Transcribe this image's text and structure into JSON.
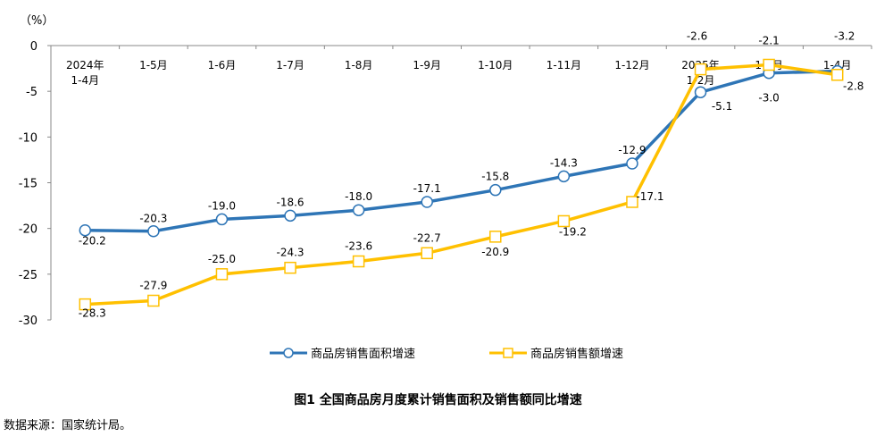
{
  "chart_data": {
    "type": "line",
    "unit_label": "（%）",
    "categories": [
      "2024年\n1-4月",
      "1-5月",
      "1-6月",
      "1-7月",
      "1-8月",
      "1-9月",
      "1-10月",
      "1-11月",
      "1-12月",
      "2025年\n1-2月",
      "1-3月",
      "1-4月"
    ],
    "ylim": [
      -30,
      0
    ],
    "yticks": [
      0,
      -5,
      -10,
      -15,
      -20,
      -25,
      -30
    ],
    "grid": false,
    "legend": "bottom",
    "series": [
      {
        "name": "商品房销售面积增速",
        "color": "#2E75B6",
        "marker": "circle",
        "values": [
          -20.2,
          -20.3,
          -19.0,
          -18.6,
          -18.0,
          -17.1,
          -15.8,
          -14.3,
          -12.9,
          -5.1,
          -3.0,
          -2.8
        ]
      },
      {
        "name": "商品房销售额增速",
        "color": "#FFC000",
        "marker": "square",
        "values": [
          -28.3,
          -27.9,
          -25.0,
          -24.3,
          -23.6,
          -22.7,
          -20.9,
          -19.2,
          -17.1,
          -2.6,
          -2.1,
          -3.2
        ]
      }
    ],
    "title": "图1  全国商品房月度累计销售面积及销售额同比增速"
  },
  "source": "数据来源：国家统计局。"
}
